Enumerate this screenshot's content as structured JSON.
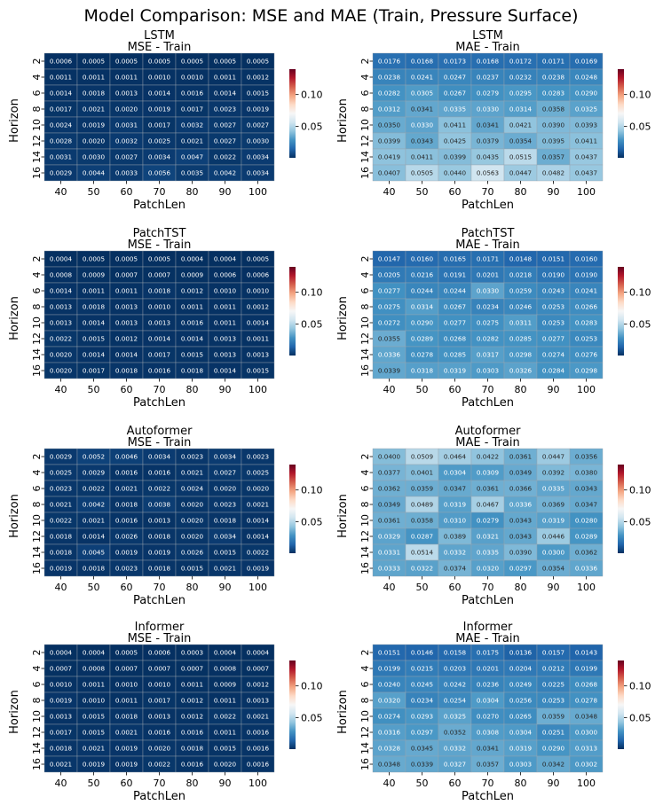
{
  "title": "Model Comparison: MSE and MAE (Train, Pressure Surface)",
  "chart_data": {
    "type": "heatmap",
    "x_tick_labels": [
      "40",
      "50",
      "60",
      "70",
      "80",
      "90",
      "100"
    ],
    "y_tick_labels": [
      "2",
      "4",
      "6",
      "8",
      "10",
      "12",
      "14",
      "16"
    ],
    "xlabel": "PatchLen",
    "ylabel": "Horizon",
    "color_range": [
      0.0005,
      0.14
    ],
    "colorbar_ticks": [
      "0.05",
      "0.10"
    ],
    "colorbar_tick_values": [
      0.05,
      0.1
    ],
    "colormap": "RdBu_r",
    "panels": [
      {
        "model": "LSTM",
        "subtitle": "MSE - Train",
        "values": [
          [
            "0.0006",
            "0.0005",
            "0.0005",
            "0.0005",
            "0.0005",
            "0.0005",
            "0.0005"
          ],
          [
            "0.0011",
            "0.0011",
            "0.0011",
            "0.0010",
            "0.0010",
            "0.0011",
            "0.0012"
          ],
          [
            "0.0014",
            "0.0018",
            "0.0013",
            "0.0014",
            "0.0016",
            "0.0014",
            "0.0015"
          ],
          [
            "0.0017",
            "0.0021",
            "0.0020",
            "0.0019",
            "0.0017",
            "0.0023",
            "0.0019"
          ],
          [
            "0.0024",
            "0.0019",
            "0.0031",
            "0.0017",
            "0.0032",
            "0.0027",
            "0.0027"
          ],
          [
            "0.0028",
            "0.0020",
            "0.0032",
            "0.0025",
            "0.0021",
            "0.0027",
            "0.0030"
          ],
          [
            "0.0031",
            "0.0030",
            "0.0027",
            "0.0034",
            "0.0047",
            "0.0022",
            "0.0034"
          ],
          [
            "0.0029",
            "0.0044",
            "0.0033",
            "0.0056",
            "0.0035",
            "0.0042",
            "0.0034"
          ]
        ]
      },
      {
        "model": "LSTM",
        "subtitle": "MAE - Train",
        "values": [
          [
            "0.0176",
            "0.0168",
            "0.0173",
            "0.0168",
            "0.0172",
            "0.0171",
            "0.0169"
          ],
          [
            "0.0238",
            "0.0241",
            "0.0247",
            "0.0237",
            "0.0232",
            "0.0238",
            "0.0248"
          ],
          [
            "0.0282",
            "0.0305",
            "0.0267",
            "0.0279",
            "0.0295",
            "0.0283",
            "0.0290"
          ],
          [
            "0.0312",
            "0.0341",
            "0.0335",
            "0.0330",
            "0.0314",
            "0.0358",
            "0.0325"
          ],
          [
            "0.0350",
            "0.0330",
            "0.0411",
            "0.0341",
            "0.0421",
            "0.0390",
            "0.0393"
          ],
          [
            "0.0399",
            "0.0343",
            "0.0425",
            "0.0379",
            "0.0354",
            "0.0395",
            "0.0411"
          ],
          [
            "0.0419",
            "0.0411",
            "0.0399",
            "0.0435",
            "0.0515",
            "0.0357",
            "0.0437"
          ],
          [
            "0.0407",
            "0.0505",
            "0.0440",
            "0.0563",
            "0.0447",
            "0.0482",
            "0.0437"
          ]
        ]
      },
      {
        "model": "PatchTST",
        "subtitle": "MSE - Train",
        "values": [
          [
            "0.0004",
            "0.0005",
            "0.0005",
            "0.0005",
            "0.0004",
            "0.0004",
            "0.0005"
          ],
          [
            "0.0008",
            "0.0009",
            "0.0007",
            "0.0007",
            "0.0009",
            "0.0006",
            "0.0006"
          ],
          [
            "0.0014",
            "0.0011",
            "0.0011",
            "0.0018",
            "0.0012",
            "0.0010",
            "0.0010"
          ],
          [
            "0.0013",
            "0.0018",
            "0.0013",
            "0.0010",
            "0.0011",
            "0.0011",
            "0.0012"
          ],
          [
            "0.0013",
            "0.0014",
            "0.0013",
            "0.0013",
            "0.0016",
            "0.0011",
            "0.0014"
          ],
          [
            "0.0022",
            "0.0015",
            "0.0012",
            "0.0014",
            "0.0014",
            "0.0013",
            "0.0011"
          ],
          [
            "0.0020",
            "0.0014",
            "0.0014",
            "0.0017",
            "0.0015",
            "0.0013",
            "0.0013"
          ],
          [
            "0.0020",
            "0.0017",
            "0.0018",
            "0.0016",
            "0.0018",
            "0.0014",
            "0.0015"
          ]
        ]
      },
      {
        "model": "PatchTST",
        "subtitle": "MAE - Train",
        "values": [
          [
            "0.0147",
            "0.0160",
            "0.0165",
            "0.0171",
            "0.0148",
            "0.0151",
            "0.0160"
          ],
          [
            "0.0205",
            "0.0216",
            "0.0191",
            "0.0201",
            "0.0218",
            "0.0190",
            "0.0190"
          ],
          [
            "0.0277",
            "0.0244",
            "0.0244",
            "0.0330",
            "0.0259",
            "0.0243",
            "0.0241"
          ],
          [
            "0.0275",
            "0.0314",
            "0.0267",
            "0.0234",
            "0.0246",
            "0.0253",
            "0.0266"
          ],
          [
            "0.0272",
            "0.0290",
            "0.0277",
            "0.0275",
            "0.0311",
            "0.0253",
            "0.0283"
          ],
          [
            "0.0355",
            "0.0289",
            "0.0268",
            "0.0282",
            "0.0285",
            "0.0277",
            "0.0253"
          ],
          [
            "0.0336",
            "0.0278",
            "0.0285",
            "0.0317",
            "0.0298",
            "0.0274",
            "0.0276"
          ],
          [
            "0.0339",
            "0.0318",
            "0.0319",
            "0.0303",
            "0.0326",
            "0.0284",
            "0.0298"
          ]
        ]
      },
      {
        "model": "Autoformer",
        "subtitle": "MSE - Train",
        "values": [
          [
            "0.0029",
            "0.0052",
            "0.0046",
            "0.0034",
            "0.0023",
            "0.0034",
            "0.0023"
          ],
          [
            "0.0025",
            "0.0029",
            "0.0016",
            "0.0016",
            "0.0021",
            "0.0027",
            "0.0025"
          ],
          [
            "0.0023",
            "0.0022",
            "0.0021",
            "0.0022",
            "0.0024",
            "0.0020",
            "0.0020"
          ],
          [
            "0.0021",
            "0.0042",
            "0.0018",
            "0.0038",
            "0.0020",
            "0.0023",
            "0.0021"
          ],
          [
            "0.0022",
            "0.0021",
            "0.0016",
            "0.0013",
            "0.0020",
            "0.0018",
            "0.0014"
          ],
          [
            "0.0018",
            "0.0014",
            "0.0026",
            "0.0018",
            "0.0020",
            "0.0034",
            "0.0014"
          ],
          [
            "0.0018",
            "0.0045",
            "0.0019",
            "0.0019",
            "0.0026",
            "0.0015",
            "0.0022"
          ],
          [
            "0.0019",
            "0.0018",
            "0.0023",
            "0.0018",
            "0.0015",
            "0.0021",
            "0.0019"
          ]
        ]
      },
      {
        "model": "Autoformer",
        "subtitle": "MAE - Train",
        "values": [
          [
            "0.0400",
            "0.0509",
            "0.0464",
            "0.0422",
            "0.0361",
            "0.0447",
            "0.0356"
          ],
          [
            "0.0377",
            "0.0401",
            "0.0304",
            "0.0309",
            "0.0349",
            "0.0392",
            "0.0380"
          ],
          [
            "0.0362",
            "0.0359",
            "0.0347",
            "0.0361",
            "0.0366",
            "0.0335",
            "0.0343"
          ],
          [
            "0.0349",
            "0.0489",
            "0.0319",
            "0.0467",
            "0.0336",
            "0.0369",
            "0.0347"
          ],
          [
            "0.0361",
            "0.0358",
            "0.0310",
            "0.0279",
            "0.0343",
            "0.0319",
            "0.0280"
          ],
          [
            "0.0329",
            "0.0287",
            "0.0389",
            "0.0321",
            "0.0343",
            "0.0446",
            "0.0289"
          ],
          [
            "0.0331",
            "0.0514",
            "0.0332",
            "0.0335",
            "0.0390",
            "0.0300",
            "0.0362"
          ],
          [
            "0.0333",
            "0.0322",
            "0.0374",
            "0.0320",
            "0.0297",
            "0.0354",
            "0.0336"
          ]
        ]
      },
      {
        "model": "Informer",
        "subtitle": "MSE - Train",
        "values": [
          [
            "0.0004",
            "0.0004",
            "0.0005",
            "0.0006",
            "0.0003",
            "0.0004",
            "0.0004"
          ],
          [
            "0.0007",
            "0.0008",
            "0.0007",
            "0.0007",
            "0.0007",
            "0.0008",
            "0.0007"
          ],
          [
            "0.0010",
            "0.0011",
            "0.0010",
            "0.0010",
            "0.0011",
            "0.0009",
            "0.0012"
          ],
          [
            "0.0019",
            "0.0010",
            "0.0011",
            "0.0017",
            "0.0012",
            "0.0011",
            "0.0013"
          ],
          [
            "0.0013",
            "0.0015",
            "0.0018",
            "0.0013",
            "0.0012",
            "0.0022",
            "0.0021"
          ],
          [
            "0.0017",
            "0.0015",
            "0.0021",
            "0.0016",
            "0.0016",
            "0.0011",
            "0.0016"
          ],
          [
            "0.0018",
            "0.0021",
            "0.0019",
            "0.0020",
            "0.0018",
            "0.0015",
            "0.0016"
          ],
          [
            "0.0021",
            "0.0019",
            "0.0019",
            "0.0022",
            "0.0016",
            "0.0020",
            "0.0016"
          ]
        ]
      },
      {
        "model": "Informer",
        "subtitle": "MAE - Train",
        "values": [
          [
            "0.0151",
            "0.0146",
            "0.0158",
            "0.0175",
            "0.0136",
            "0.0157",
            "0.0143"
          ],
          [
            "0.0199",
            "0.0215",
            "0.0203",
            "0.0201",
            "0.0204",
            "0.0212",
            "0.0199"
          ],
          [
            "0.0240",
            "0.0245",
            "0.0242",
            "0.0236",
            "0.0249",
            "0.0225",
            "0.0268"
          ],
          [
            "0.0320",
            "0.0234",
            "0.0254",
            "0.0304",
            "0.0256",
            "0.0253",
            "0.0278"
          ],
          [
            "0.0274",
            "0.0293",
            "0.0325",
            "0.0270",
            "0.0265",
            "0.0359",
            "0.0348"
          ],
          [
            "0.0316",
            "0.0297",
            "0.0352",
            "0.0308",
            "0.0304",
            "0.0251",
            "0.0300"
          ],
          [
            "0.0328",
            "0.0345",
            "0.0332",
            "0.0341",
            "0.0319",
            "0.0290",
            "0.0313"
          ],
          [
            "0.0348",
            "0.0339",
            "0.0327",
            "0.0357",
            "0.0303",
            "0.0342",
            "0.0302"
          ]
        ]
      }
    ]
  }
}
